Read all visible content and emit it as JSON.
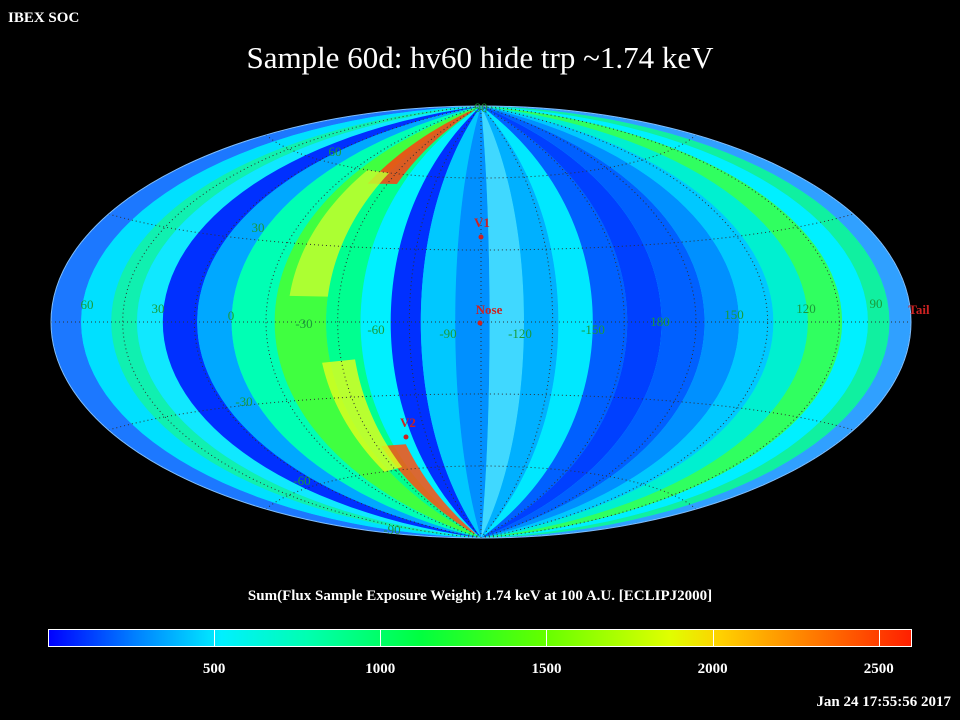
{
  "header": {
    "org": "IBEX SOC",
    "title": "Sample 60d: hv60 hide trp ~1.74 keV"
  },
  "map": {
    "projection": "aitoff",
    "meridian_labels": [
      "60",
      "30",
      "0",
      "-30",
      "-60",
      "-90",
      "-120",
      "-150",
      "180",
      "150",
      "120",
      "90"
    ],
    "parallel_labels": [
      "90",
      "60",
      "30",
      "-30",
      "-60",
      "-90"
    ],
    "markers": [
      {
        "label": "V1",
        "color": "#cc2222"
      },
      {
        "label": "Nose",
        "color": "#cc2222"
      },
      {
        "label": "V2",
        "color": "#cc2222"
      },
      {
        "label": "Tail",
        "color": "#cc2222"
      }
    ]
  },
  "colorbar": {
    "title": "Sum(Flux Sample Exposure Weight)  1.74 keV at 100 A.U. [ECLIPJ2000]",
    "range": [
      0,
      2600
    ],
    "ticks": [
      "500",
      "1000",
      "1500",
      "2000",
      "2500"
    ],
    "tick_values": [
      500,
      1000,
      1500,
      2000,
      2500
    ]
  },
  "footer": {
    "timestamp": "Jan 24 17:55:56 2017"
  }
}
